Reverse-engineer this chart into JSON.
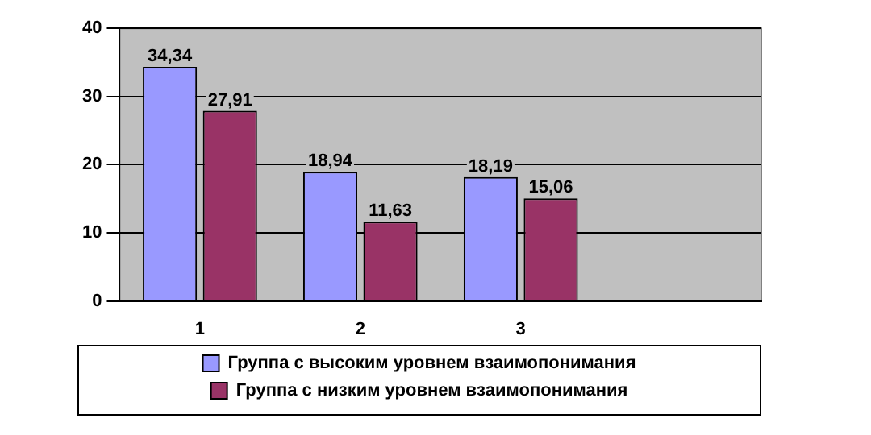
{
  "chart_data": {
    "type": "bar",
    "categories": [
      "1",
      "2",
      "3",
      null
    ],
    "series": [
      {
        "name": "Группа с высоким уровнем взаимопонимания",
        "color": "#9999ff",
        "values": [
          34.34,
          18.94,
          18.19,
          null
        ],
        "value_labels": [
          "34,34",
          "18,94",
          "18,19",
          null
        ]
      },
      {
        "name": "Группа с низким уровнем взаимопонимания",
        "color": "#993366",
        "values": [
          27.91,
          11.63,
          15.06,
          null
        ],
        "value_labels": [
          "27,91",
          "11,63",
          "15,06",
          null
        ]
      }
    ],
    "ylim": [
      0,
      40
    ],
    "yticks": [
      0,
      10,
      20,
      30,
      40
    ],
    "grid": "y",
    "legend": "bottom"
  }
}
